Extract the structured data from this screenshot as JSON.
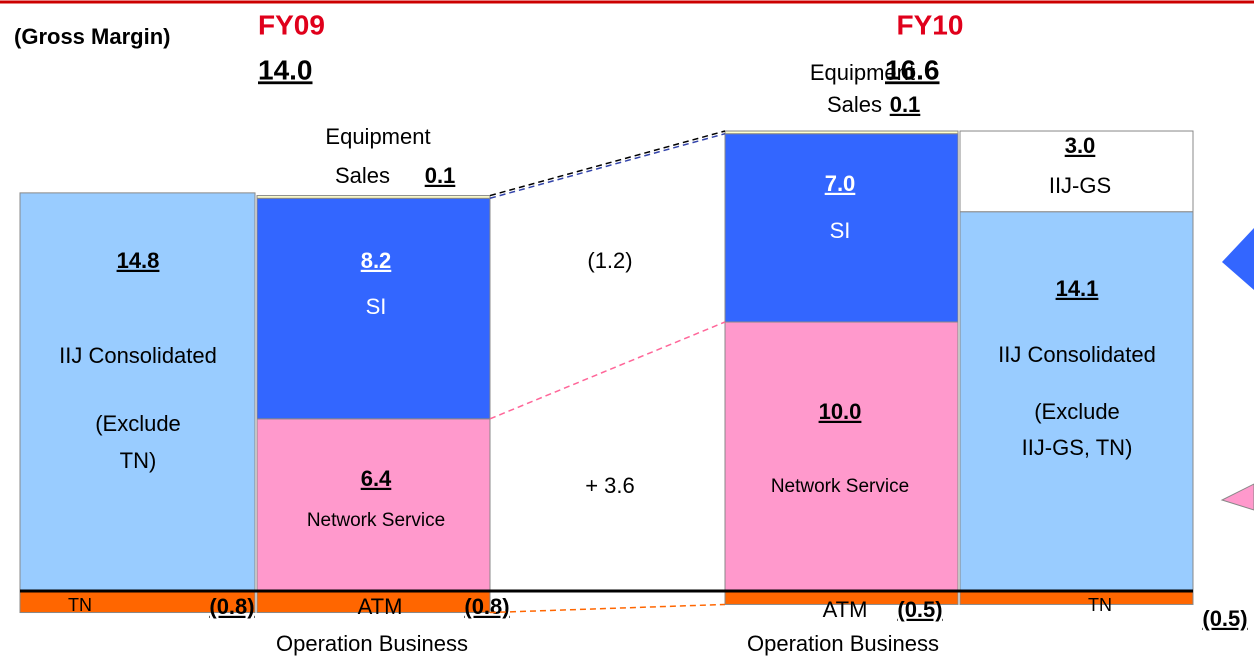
{
  "chart_data": {
    "type": "stacked_bar",
    "title": "(Gross Margin)",
    "groups": [
      {
        "name": "FY09",
        "total": 14.0,
        "total_label": "14.0"
      },
      {
        "name": "FY10",
        "total": 16.6
      }
    ],
    "annotations": [
      "(1.2)",
      "+ 3.6"
    ],
    "columns": [
      {
        "segments": [
          {
            "name": [
              "IIJ Consolidated",
              "(Exclude",
              "TN)"
            ],
            "value": 14.8,
            "color": "#99ccff"
          },
          {
            "name": [
              "TN"
            ],
            "value": -0.8,
            "value_label": "(0.8)",
            "color": "#ff6600"
          }
        ]
      },
      {
        "segments": [
          {
            "name": [
              "Network Service"
            ],
            "value": 6.4,
            "color": "#ff99cc"
          },
          {
            "name": [
              "SI"
            ],
            "value": 8.2,
            "color": "#3366ff"
          },
          {
            "name": [
              "Equipment",
              "Sales"
            ],
            "value": 0.1,
            "color": "#ffffcc"
          },
          {
            "name": [
              "ATM",
              "Operation Business"
            ],
            "value": -0.8,
            "value_label": "(0.8)",
            "color": "#ff6600"
          }
        ]
      },
      {
        "segments": [
          {
            "name": [
              "Network Service"
            ],
            "value": 10.0,
            "value_label": "10.0",
            "color": "#ff99cc"
          },
          {
            "name": [
              "SI"
            ],
            "value": 7.0,
            "value_label": "7.0",
            "color": "#3366ff"
          },
          {
            "name": [
              "Equipment",
              "Sales"
            ],
            "value": 0.1,
            "color": "#ffffcc"
          },
          {
            "name": [
              "ATM",
              "Operation Business"
            ],
            "value": -0.5,
            "value_label": "(0.5)",
            "color": "#ff6600"
          }
        ]
      },
      {
        "segments": [
          {
            "name": [
              "IIJ Consolidated",
              "(Exclude",
              "IIJ-GS, TN)"
            ],
            "value": 14.1,
            "color": "#99ccff"
          },
          {
            "name": [
              "IIJ-GS"
            ],
            "value": 3.0,
            "value_label": "3.0",
            "color": "#ffffff"
          },
          {
            "name": [
              "TN"
            ],
            "value": -0.5,
            "value_label": "(0.5)",
            "color": "#ff6600"
          }
        ]
      }
    ]
  }
}
